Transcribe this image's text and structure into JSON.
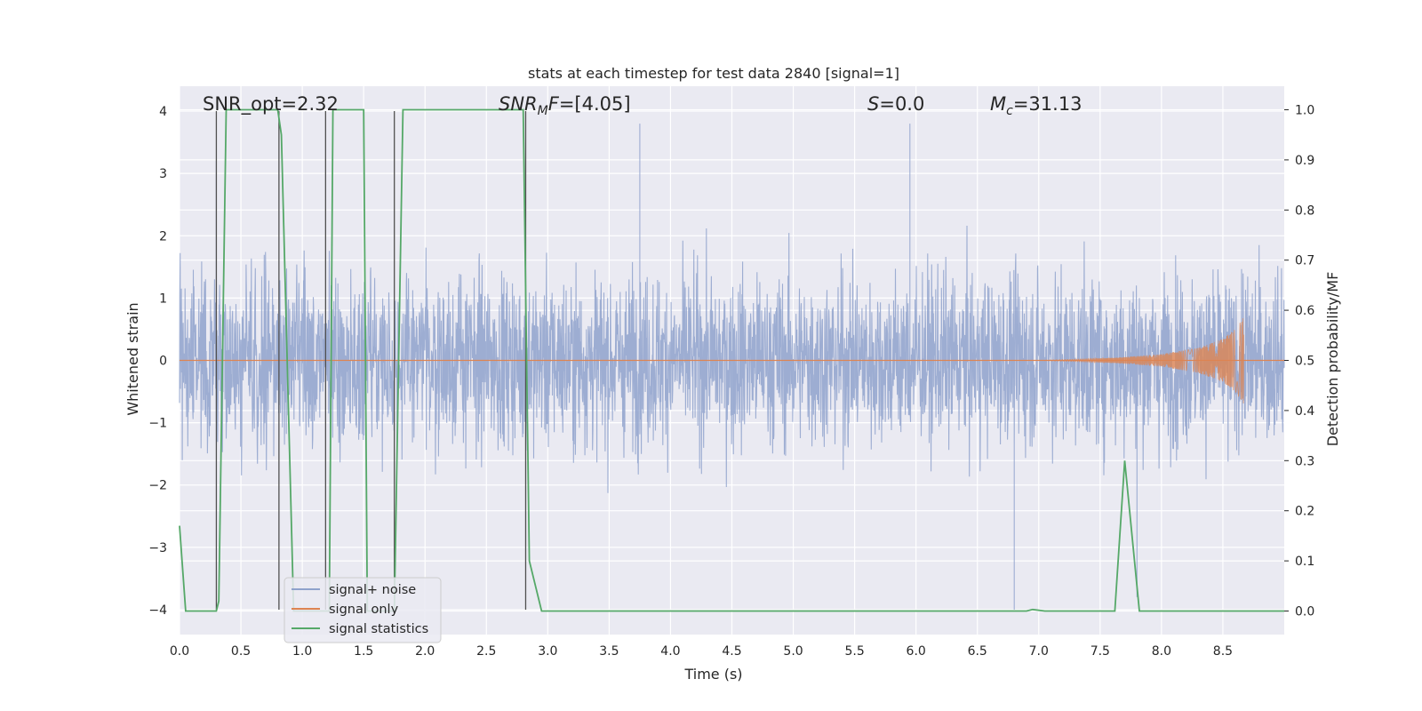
{
  "chart_data": {
    "type": "line",
    "title": "stats at each timestep for test data 2840 [signal=1]",
    "xlabel": "Time (s)",
    "ylabel_left": "Whitened strain",
    "ylabel_right": "Detection probability/MF",
    "xlim": [
      0,
      9.0
    ],
    "ylim_left": [
      -4.4,
      4.4
    ],
    "ylim_right": [
      -0.047,
      1.047
    ],
    "x_ticks": [
      "0.0",
      "0.5",
      "1.0",
      "1.5",
      "2.0",
      "2.5",
      "3.0",
      "3.5",
      "4.0",
      "4.5",
      "5.0",
      "5.5",
      "6.0",
      "6.5",
      "7.0",
      "7.5",
      "8.0",
      "8.5"
    ],
    "y_left_ticks": [
      "4",
      "3",
      "2",
      "1",
      "0",
      "−1",
      "−2",
      "−3",
      "−4"
    ],
    "y_right_ticks": [
      "1.0",
      "0.9",
      "0.8",
      "0.7",
      "0.6",
      "0.5",
      "0.4",
      "0.3",
      "0.2",
      "0.1",
      "0.0"
    ],
    "grid": true,
    "legend_position": "lower-left",
    "annotations": {
      "snr_opt": "SNR_opt=2.32",
      "snr_mf": "SNR_MF=[4.05]",
      "s_stat": "S=0.0",
      "mc": "M_c=31.13"
    },
    "series": [
      {
        "name": "signal+ noise",
        "color": "#8fa2cc",
        "description_x_range": [
          0,
          9.0
        ],
        "typical_amplitude_range": [
          -2.6,
          2.6
        ],
        "extreme_peaks": [
          {
            "x": 6.8,
            "y": -4.0
          },
          {
            "x": 3.75,
            "y": 3.8
          },
          {
            "x": 5.95,
            "y": 3.8
          },
          {
            "x": 0.3,
            "y": 3.2
          },
          {
            "x": 7.8,
            "y": -3.8
          }
        ]
      },
      {
        "name": "signal only",
        "color": "#dd8452",
        "points": [
          [
            0,
            0
          ],
          [
            7.0,
            0
          ],
          [
            7.6,
            0.04
          ],
          [
            8.0,
            0.1
          ],
          [
            8.3,
            0.2
          ],
          [
            8.5,
            0.35
          ],
          [
            8.6,
            0.5
          ],
          [
            8.67,
            0.7
          ]
        ]
      },
      {
        "name": "signal statistics",
        "color": "#55a868",
        "axis": "right",
        "points": [
          [
            0.0,
            0.17
          ],
          [
            0.05,
            0.0
          ],
          [
            0.2,
            0.0
          ],
          [
            0.3,
            0.0
          ],
          [
            0.32,
            0.02
          ],
          [
            0.38,
            1.0
          ],
          [
            0.8,
            1.0
          ],
          [
            0.83,
            0.95
          ],
          [
            0.93,
            0.0
          ],
          [
            1.15,
            0.0
          ],
          [
            1.18,
            0.0
          ],
          [
            1.22,
            0.0
          ],
          [
            1.25,
            1.0
          ],
          [
            1.5,
            1.0
          ],
          [
            1.53,
            0.0
          ],
          [
            1.58,
            0.0
          ],
          [
            1.7,
            0.0
          ],
          [
            1.75,
            0.0
          ],
          [
            1.82,
            1.0
          ],
          [
            2.8,
            1.0
          ],
          [
            2.85,
            0.1
          ],
          [
            2.95,
            0.0
          ],
          [
            6.9,
            0.0
          ],
          [
            6.95,
            0.003
          ],
          [
            7.05,
            0.0
          ],
          [
            7.62,
            0.0
          ],
          [
            7.7,
            0.3
          ],
          [
            7.82,
            0.0
          ],
          [
            9.0,
            0.0
          ]
        ]
      }
    ],
    "vertical_markers_x": [
      0.3,
      0.81,
      1.19,
      1.75,
      2.82
    ],
    "legend": [
      {
        "label": "signal+ noise",
        "color": "#8fa2cc"
      },
      {
        "label": "signal only",
        "color": "#dd8452"
      },
      {
        "label": "signal statistics",
        "color": "#55a868"
      }
    ]
  }
}
